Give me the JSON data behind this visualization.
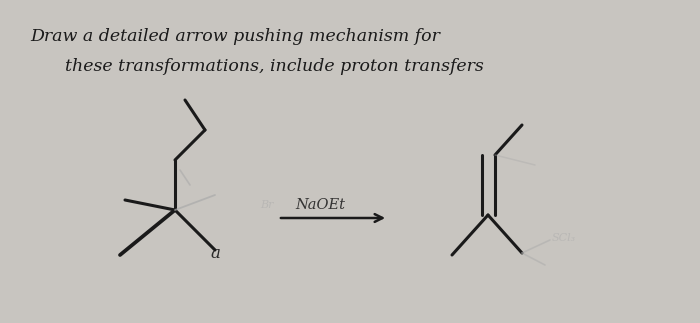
{
  "bg_color": "#c8c5c0",
  "line_color": "#1a1a1a",
  "text_color": "#1a1a1a",
  "faint_color": "#888880",
  "very_faint_color": "#aaaaaa",
  "title_line1": "Draw a detailed arrow pushing mechanism for",
  "title_line2": "these transformations, include proton transfers",
  "reagent_label": "NaOEt",
  "label_a": "a",
  "label_scl3": "SCl₃",
  "label_br": "Br",
  "title_fontsize": 12.5
}
